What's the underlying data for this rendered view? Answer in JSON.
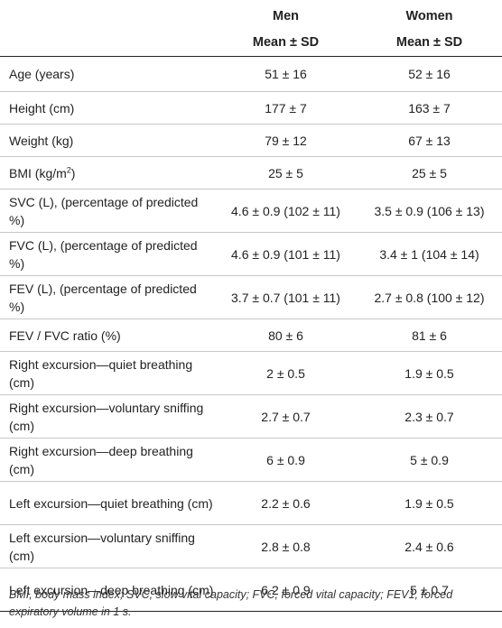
{
  "table": {
    "header": {
      "row1": [
        "",
        "Men",
        "Women"
      ],
      "row2": [
        "",
        "Mean ± SD",
        "Mean ± SD"
      ]
    },
    "rows": [
      {
        "label": "Age (years)",
        "men": "51 ± 16",
        "women": "52 ± 16"
      },
      {
        "label": "Height (cm)",
        "men": "177 ± 7",
        "women": "163 ± 7"
      },
      {
        "label": "Weight (kg)",
        "men": "79 ± 12",
        "women": "67 ± 13"
      },
      {
        "label_base": "BMI (kg/m",
        "label_sup": "2",
        "label_end": ")",
        "men": "25 ± 5",
        "women": "25 ± 5"
      },
      {
        "label": "SVC (L), (percentage of predicted %)",
        "men": "4.6 ± 0.9 (102 ± 11)",
        "women": "3.5 ± 0.9 (106 ± 13)"
      },
      {
        "label": "FVC (L), (percentage of predicted %)",
        "men": "4.6 ± 0.9 (101 ± 11)",
        "women": "3.4 ± 1 (104 ± 14)"
      },
      {
        "label": "FEV (L), (percentage of predicted %)",
        "men": "3.7 ± 0.7 (101 ± 11)",
        "women": "2.7 ± 0.8 (100 ± 12)"
      },
      {
        "label": "FEV / FVC ratio (%)",
        "men": "80 ± 6",
        "women": "81 ± 6"
      },
      {
        "label": "Right excursion—quiet breathing (cm)",
        "men": "2 ± 0.5",
        "women": "1.9 ± 0.5"
      },
      {
        "label": "Right excursion—voluntary sniffing (cm)",
        "men": "2.7 ± 0.7",
        "women": "2.3 ± 0.7"
      },
      {
        "label": "Right excursion—deep breathing (cm)",
        "men": "6 ± 0.9",
        "women": "5 ± 0.9"
      },
      {
        "label": "Left excursion—quiet breathing (cm)",
        "men": "2.2 ± 0.6",
        "women": "1.9 ± 0.5"
      },
      {
        "label": "Left excursion—voluntary sniffing (cm)",
        "men": "2.8 ± 0.8",
        "women": "2.4 ± 0.6"
      },
      {
        "label": "Left excursion—deep breathing (cm)",
        "men": "6.2 ± 0.9",
        "women": "5 ± 0.7"
      }
    ],
    "footnote": "BMI, body mass index; SVC, slow vital capacity; FVC, forced vital capacity; FEV1, forced expiratory volume in 1 s."
  }
}
